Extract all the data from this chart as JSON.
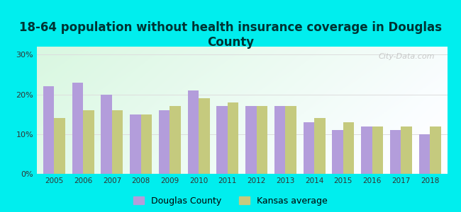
{
  "title": "18-64 population without health insurance coverage in Douglas\nCounty",
  "years": [
    2005,
    2006,
    2007,
    2008,
    2009,
    2010,
    2011,
    2012,
    2013,
    2014,
    2015,
    2016,
    2017,
    2018
  ],
  "douglas_county": [
    22,
    23,
    20,
    15,
    16,
    21,
    17,
    17,
    17,
    13,
    11,
    12,
    11,
    10
  ],
  "kansas_average": [
    14,
    16,
    16,
    15,
    17,
    19,
    18,
    17,
    17,
    14,
    13,
    12,
    12,
    12
  ],
  "douglas_color": "#b39ddb",
  "kansas_color": "#c5ca7e",
  "outer_bg": "#00eeee",
  "ylim": [
    0,
    32
  ],
  "yticks": [
    0,
    10,
    20,
    30
  ],
  "ytick_labels": [
    "0%",
    "10%",
    "20%",
    "30%"
  ],
  "legend_douglas": "Douglas County",
  "legend_kansas": "Kansas average",
  "title_fontsize": 12,
  "bar_width": 0.38
}
